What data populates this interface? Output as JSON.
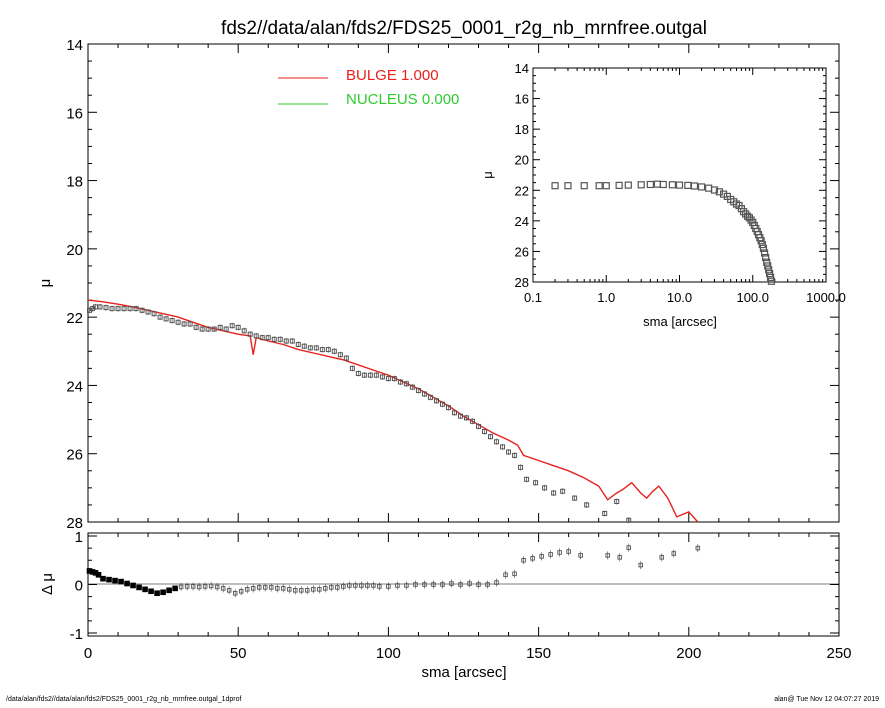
{
  "title": "fds2//data/alan/fds2/FDS25_0001_r2g_nb_mrnfree.outgal",
  "footer_left": "/data/alan/fds2//data/alan/fds2/FDS25_0001_r2g_nb_mrnfree.outgal_1dprof",
  "footer_right": "alan@  Tue Nov 12 04:07:27 2019",
  "colors": {
    "bulge": "#e8211d",
    "nucleus": "#2ecc2e",
    "points": "#555555",
    "axis": "#000000"
  },
  "chart_data": [
    {
      "type": "scatter",
      "xlabel": "",
      "ylabel": "μ",
      "xlim": [
        0,
        250
      ],
      "ylim": [
        28,
        14
      ],
      "yticks": [
        14,
        16,
        18,
        20,
        22,
        24,
        26,
        28
      ],
      "legend": [
        {
          "name": "BULGE",
          "value": "1.000",
          "color": "#e8211d"
        },
        {
          "name": "NUCLEUS",
          "value": "0.000",
          "color": "#2ecc2e"
        }
      ],
      "legend_text": [
        "BULGE  1.000",
        "NUCLEUS  0.000"
      ],
      "data_points": {
        "x": [
          0.5,
          1.5,
          2.5,
          4,
          6,
          8,
          10,
          12,
          14,
          16,
          18,
          20,
          22,
          24,
          26,
          28,
          30,
          32,
          34,
          36,
          38,
          40,
          42,
          44,
          46,
          48,
          50,
          52,
          54,
          56,
          58,
          60,
          62,
          64,
          66,
          68,
          70,
          72,
          74,
          76,
          78,
          80,
          82,
          84,
          86,
          88,
          90,
          92,
          94,
          96,
          98,
          100,
          102,
          104,
          106,
          108,
          110,
          112,
          114,
          116,
          118,
          120,
          122,
          124,
          126,
          128,
          130,
          132,
          134,
          136,
          138,
          140,
          142,
          144,
          146,
          149,
          152,
          155,
          158,
          162,
          166,
          172,
          176,
          180,
          184,
          191,
          195,
          202
        ],
        "y": [
          21.8,
          21.75,
          21.7,
          21.7,
          21.72,
          21.75,
          21.75,
          21.75,
          21.75,
          21.75,
          21.8,
          21.85,
          21.9,
          22.0,
          22.05,
          22.1,
          22.15,
          22.2,
          22.2,
          22.3,
          22.35,
          22.35,
          22.35,
          22.3,
          22.35,
          22.25,
          22.3,
          22.4,
          22.5,
          22.55,
          22.6,
          22.6,
          22.65,
          22.65,
          22.7,
          22.7,
          22.8,
          22.85,
          22.9,
          22.9,
          22.95,
          22.95,
          23.0,
          23.1,
          23.2,
          23.5,
          23.65,
          23.7,
          23.7,
          23.7,
          23.75,
          23.8,
          23.8,
          23.9,
          23.95,
          24.05,
          24.15,
          24.25,
          24.35,
          24.45,
          24.55,
          24.65,
          24.8,
          24.9,
          24.95,
          25.05,
          25.2,
          25.35,
          25.5,
          25.65,
          25.8,
          25.95,
          26.05,
          26.4,
          26.75,
          26.85,
          27.0,
          27.15,
          27.1,
          27.3,
          27.5,
          27.75,
          27.4,
          27.95,
          28.05,
          28.2,
          28.4,
          28.55
        ]
      },
      "bulge_model": {
        "x": [
          0,
          5,
          10,
          15,
          20,
          25,
          30,
          35,
          40,
          45,
          50,
          54,
          55,
          56,
          60,
          65,
          70,
          75,
          80,
          85,
          90,
          95,
          100,
          105,
          110,
          115,
          120,
          125,
          130,
          135,
          140,
          143,
          145,
          150,
          155,
          160,
          165,
          170,
          173,
          176,
          178,
          181,
          184,
          186,
          188,
          190,
          193,
          196,
          200
        ],
        "y": [
          21.5,
          21.55,
          21.62,
          21.7,
          21.8,
          21.9,
          22.0,
          22.15,
          22.3,
          22.4,
          22.5,
          22.55,
          23.1,
          22.6,
          22.7,
          22.8,
          22.95,
          23.05,
          23.15,
          23.25,
          23.4,
          23.55,
          23.7,
          23.9,
          24.1,
          24.35,
          24.6,
          24.9,
          25.15,
          25.4,
          25.6,
          25.75,
          26.05,
          26.2,
          26.35,
          26.5,
          26.7,
          26.95,
          27.35,
          27.15,
          27.05,
          26.85,
          27.15,
          27.3,
          27.1,
          26.95,
          27.3,
          27.85,
          27.7
        ]
      }
    },
    {
      "type": "scatter",
      "xlabel": "sma [arcsec]",
      "ylabel": "Δ μ",
      "xlim": [
        0,
        250
      ],
      "ylim": [
        -1,
        1
      ],
      "xticks": [
        0,
        50,
        100,
        150,
        200,
        250
      ],
      "yticks": [
        -1,
        0,
        1
      ],
      "data_points": {
        "x": [
          0.5,
          1.5,
          2.5,
          3.5,
          5,
          7,
          9,
          11,
          13,
          15,
          17,
          19,
          21,
          23,
          25,
          27,
          29,
          31,
          33,
          35,
          37,
          39,
          41,
          43,
          45,
          47,
          49,
          51,
          53,
          55,
          57,
          59,
          61,
          63,
          65,
          67,
          69,
          71,
          73,
          75,
          77,
          79,
          81,
          83,
          85,
          87,
          89,
          91,
          93,
          95,
          97,
          100,
          103,
          106,
          109,
          112,
          115,
          118,
          121,
          124,
          127,
          130,
          133,
          136,
          139,
          142,
          145,
          148,
          151,
          154,
          157,
          160,
          164,
          173,
          177,
          180,
          184,
          191,
          195,
          203
        ],
        "y": [
          0.28,
          0.26,
          0.24,
          0.2,
          0.12,
          0.1,
          0.08,
          0.06,
          0.02,
          -0.02,
          -0.06,
          -0.1,
          -0.14,
          -0.18,
          -0.16,
          -0.12,
          -0.08,
          -0.05,
          -0.04,
          -0.04,
          -0.05,
          -0.04,
          -0.03,
          -0.05,
          -0.08,
          -0.12,
          -0.18,
          -0.14,
          -0.1,
          -0.08,
          -0.06,
          -0.06,
          -0.06,
          -0.08,
          -0.08,
          -0.1,
          -0.12,
          -0.12,
          -0.12,
          -0.1,
          -0.1,
          -0.08,
          -0.06,
          -0.06,
          -0.04,
          -0.02,
          -0.02,
          -0.02,
          -0.02,
          -0.02,
          -0.04,
          -0.04,
          -0.02,
          -0.02,
          0.0,
          0.0,
          0.0,
          0.0,
          0.02,
          0.0,
          0.02,
          0.0,
          0.0,
          0.04,
          0.2,
          0.22,
          0.5,
          0.54,
          0.58,
          0.62,
          0.66,
          0.68,
          0.6,
          0.6,
          0.56,
          0.76,
          0.4,
          0.56,
          0.64,
          0.75
        ]
      }
    },
    {
      "type": "scatter",
      "xlabel": "sma [arcsec]",
      "ylabel": "μ",
      "xscale": "log",
      "xlim": [
        0.1,
        1000
      ],
      "ylim": [
        28,
        14
      ],
      "xticks": [
        "0.1",
        "1.0",
        "10.0",
        "100.0",
        "1000.0"
      ],
      "yticks": [
        14,
        16,
        18,
        20,
        22,
        24,
        26,
        28
      ],
      "data_points": {
        "x": [
          0.2,
          0.3,
          0.5,
          0.8,
          1,
          1.5,
          2,
          3,
          4,
          5,
          6,
          8,
          10,
          13,
          16,
          20,
          25,
          30,
          35,
          40,
          45,
          50,
          55,
          60,
          65,
          70,
          75,
          80,
          85,
          90,
          95,
          100,
          105,
          110,
          115,
          120,
          125,
          130,
          135,
          140,
          145,
          150,
          155,
          160,
          165,
          170,
          175,
          180
        ],
        "y": [
          21.7,
          21.7,
          21.7,
          21.7,
          21.7,
          21.68,
          21.66,
          21.64,
          21.62,
          21.6,
          21.62,
          21.64,
          21.66,
          21.68,
          21.72,
          21.78,
          21.86,
          21.98,
          22.1,
          22.25,
          22.4,
          22.6,
          22.75,
          22.9,
          23.0,
          23.2,
          23.4,
          23.55,
          23.7,
          23.8,
          23.95,
          24.1,
          24.3,
          24.5,
          24.7,
          24.9,
          25.1,
          25.3,
          25.55,
          25.8,
          26.1,
          26.4,
          26.7,
          26.95,
          27.2,
          27.45,
          27.7,
          27.95
        ]
      }
    }
  ]
}
